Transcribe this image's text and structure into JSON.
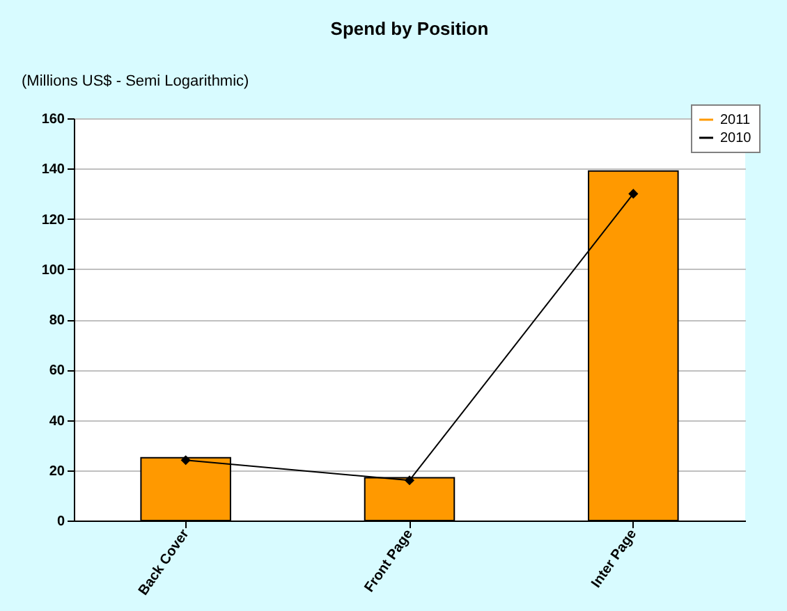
{
  "chart_data": {
    "type": "bar",
    "title": "Spend by Position",
    "ylabel": "(Millions US$ - Semi Logarithmic)",
    "categories": [
      "Back Cover",
      "Front Page",
      "Inter Page"
    ],
    "series": [
      {
        "name": "2011",
        "color": "#ff9900",
        "values": [
          25,
          17,
          139
        ]
      },
      {
        "name": "2010",
        "type": "line",
        "color": "#000000",
        "values": [
          24,
          16,
          130
        ],
        "marker": "diamond"
      }
    ],
    "ylim": [
      0,
      160
    ],
    "yticks": [
      0,
      20,
      40,
      60,
      80,
      100,
      120,
      140,
      160
    ],
    "grid": "y",
    "legend": "top right"
  }
}
